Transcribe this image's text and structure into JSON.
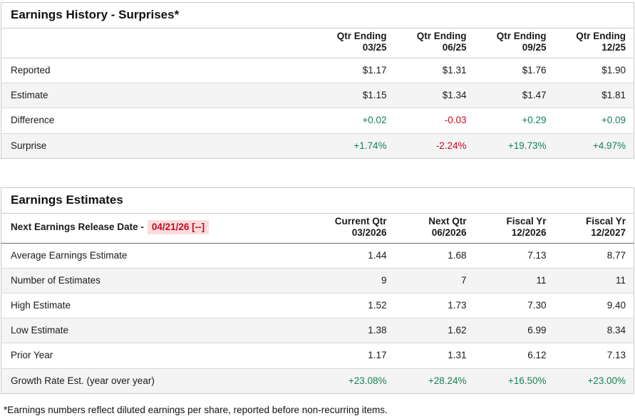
{
  "colors": {
    "positive": "#178056",
    "negative": "#c30b23",
    "highlight_bg": "#fbdcdc"
  },
  "history": {
    "title": "Earnings History - Surprises*",
    "columns": [
      "Qtr Ending\n03/25",
      "Qtr Ending\n06/25",
      "Qtr Ending\n09/25",
      "Qtr Ending\n12/25"
    ],
    "rows": [
      {
        "label": "Reported",
        "signed": false,
        "values": [
          "$1.17",
          "$1.31",
          "$1.76",
          "$1.90"
        ]
      },
      {
        "label": "Estimate",
        "signed": false,
        "values": [
          "$1.15",
          "$1.34",
          "$1.47",
          "$1.81"
        ]
      },
      {
        "label": "Difference",
        "signed": true,
        "values": [
          "+0.02",
          "-0.03",
          "+0.29",
          "+0.09"
        ]
      },
      {
        "label": "Surprise",
        "signed": true,
        "values": [
          "+1.74%",
          "-2.24%",
          "+19.73%",
          "+4.97%"
        ]
      }
    ]
  },
  "estimates": {
    "title": "Earnings Estimates",
    "release_label": "Next Earnings Release Date -",
    "release_date": "04/21/26 [--]",
    "columns": [
      "Current Qtr\n03/2026",
      "Next Qtr\n06/2026",
      "Fiscal Yr\n12/2026",
      "Fiscal Yr\n12/2027"
    ],
    "rows": [
      {
        "label": "Average Earnings Estimate",
        "signed": false,
        "values": [
          "1.44",
          "1.68",
          "7.13",
          "8.77"
        ]
      },
      {
        "label": "Number of Estimates",
        "signed": false,
        "values": [
          "9",
          "7",
          "11",
          "11"
        ]
      },
      {
        "label": "High Estimate",
        "signed": false,
        "values": [
          "1.52",
          "1.73",
          "7.30",
          "9.40"
        ]
      },
      {
        "label": "Low Estimate",
        "signed": false,
        "values": [
          "1.38",
          "1.62",
          "6.99",
          "8.34"
        ]
      },
      {
        "label": "Prior Year",
        "signed": false,
        "values": [
          "1.17",
          "1.31",
          "6.12",
          "7.13"
        ]
      },
      {
        "label": "Growth Rate Est. (year over year)",
        "signed": true,
        "values": [
          "+23.08%",
          "+28.24%",
          "+16.50%",
          "+23.00%"
        ]
      }
    ]
  },
  "footnote": "*Earnings numbers reflect diluted earnings per share, reported before non-recurring items."
}
